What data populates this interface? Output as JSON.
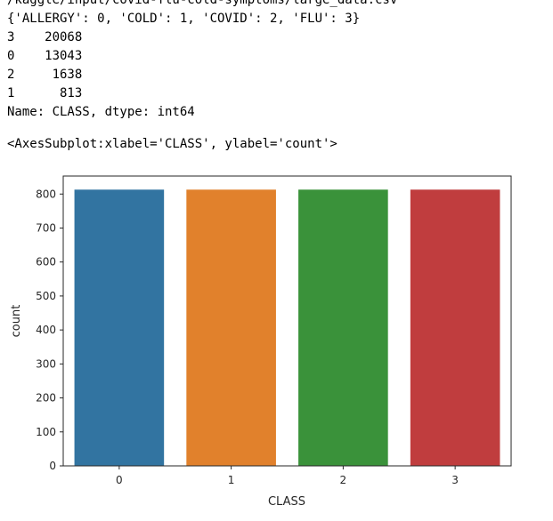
{
  "output": {
    "stdout_lines": [
      "/kaggle/input/covid-flu-cold-symptoms/large_data.csv",
      "{'ALLERGY': 0, 'COLD': 1, 'COVID': 2, 'FLU': 3}",
      "3    20068",
      "0    13043",
      "2     1638",
      "1      813",
      "Name: CLASS, dtype: int64"
    ],
    "repr": "<AxesSubplot:xlabel='CLASS', ylabel='count'>"
  },
  "chart_data": {
    "type": "bar",
    "categories": [
      "0",
      "1",
      "2",
      "3"
    ],
    "values": [
      813,
      813,
      813,
      813
    ],
    "colors": [
      "#3274a1",
      "#e1812c",
      "#3a923a",
      "#c03d3e"
    ],
    "xlabel": "CLASS",
    "ylabel": "count",
    "ylim": [
      0,
      853
    ],
    "yticks": [
      0,
      100,
      200,
      300,
      400,
      500,
      600,
      700,
      800
    ],
    "grid": false
  }
}
